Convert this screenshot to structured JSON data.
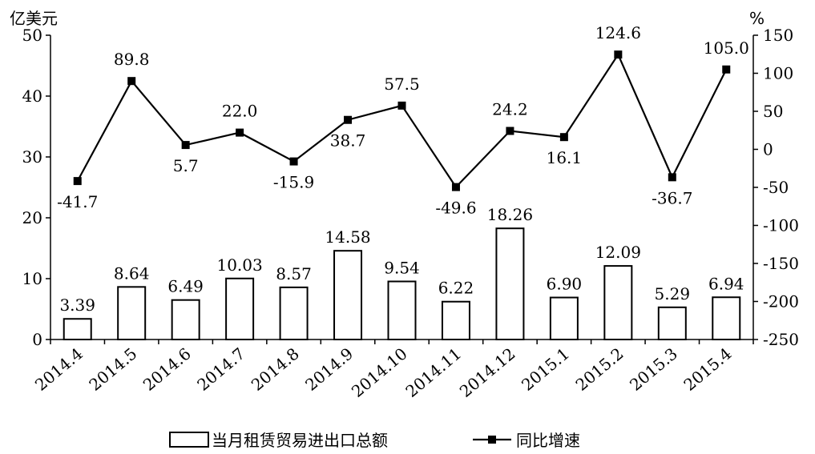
{
  "chart_data": {
    "type": "bar+line",
    "categories": [
      "2014.4",
      "2014.5",
      "2014.6",
      "2014.7",
      "2014.8",
      "2014.9",
      "2014.10",
      "2014.11",
      "2014.12",
      "2015.1",
      "2015.2",
      "2015.3",
      "2015.4"
    ],
    "series": [
      {
        "name": "当月租赁贸易进出口总额",
        "type": "bar",
        "axis": "left",
        "values": [
          3.39,
          8.64,
          6.49,
          10.03,
          8.57,
          14.58,
          9.54,
          6.22,
          18.26,
          6.9,
          12.09,
          5.29,
          6.94
        ],
        "labels": [
          "3.39",
          "8.64",
          "6.49",
          "10.03",
          "8.57",
          "14.58",
          "9.54",
          "6.22",
          "18.26",
          "6.90",
          "12.09",
          "5.29",
          "6.94"
        ]
      },
      {
        "name": "同比增速",
        "type": "line",
        "axis": "right",
        "values": [
          -41.7,
          89.8,
          5.7,
          22.0,
          -15.9,
          38.7,
          57.5,
          -49.6,
          24.2,
          16.1,
          124.6,
          -36.7,
          105.0
        ],
        "labels": [
          "-41.7",
          "89.8",
          "5.7",
          "22.0",
          "-15.9",
          "38.7",
          "57.5",
          "-49.6",
          "24.2",
          "16.1",
          "124.6",
          "-36.7",
          "105.0"
        ]
      }
    ],
    "left_axis": {
      "unit": "亿美元",
      "ylim": [
        0,
        50
      ],
      "ticks": [
        "0",
        "10",
        "20",
        "30",
        "40",
        "50"
      ]
    },
    "right_axis": {
      "unit": "%",
      "ylim": [
        -250,
        150
      ],
      "ticks": [
        "-250",
        "-200",
        "-150",
        "-100",
        "-50",
        "0",
        "50",
        "100",
        "150"
      ]
    },
    "legend": {
      "placement": "bottom"
    },
    "grid": false
  }
}
